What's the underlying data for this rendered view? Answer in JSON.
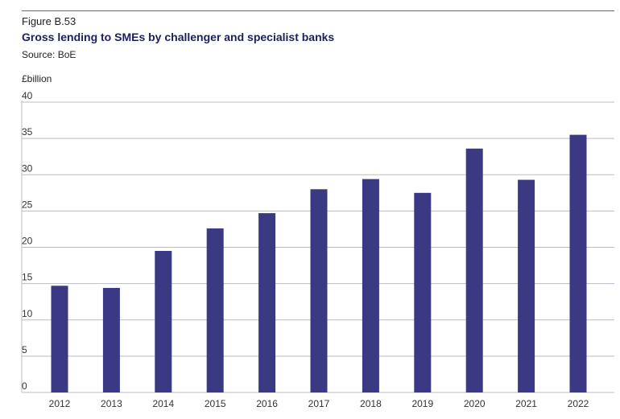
{
  "figure": {
    "label": "Figure B.53",
    "title": "Gross lending to SMEs by challenger and specialist banks",
    "source": "Source: BoE",
    "unit": "£billion"
  },
  "colors": {
    "bar": "#3b3884",
    "grid": "#b8bcc6",
    "rule": "#5a6a80",
    "title": "#1b1f5e"
  },
  "chart_data": {
    "type": "bar",
    "title": "Gross lending to SMEs by challenger and specialist banks",
    "xlabel": "",
    "ylabel": "£billion",
    "categories": [
      "2012",
      "2013",
      "2014",
      "2015",
      "2016",
      "2017",
      "2018",
      "2019",
      "2020",
      "2021",
      "2022"
    ],
    "values": [
      14.7,
      14.4,
      19.5,
      22.6,
      24.7,
      28.0,
      29.4,
      27.5,
      33.6,
      29.3,
      35.5
    ],
    "ylim": [
      0,
      40
    ],
    "yticks": [
      0,
      5,
      10,
      15,
      20,
      25,
      30,
      35,
      40
    ],
    "grid": true,
    "legend": "none"
  }
}
